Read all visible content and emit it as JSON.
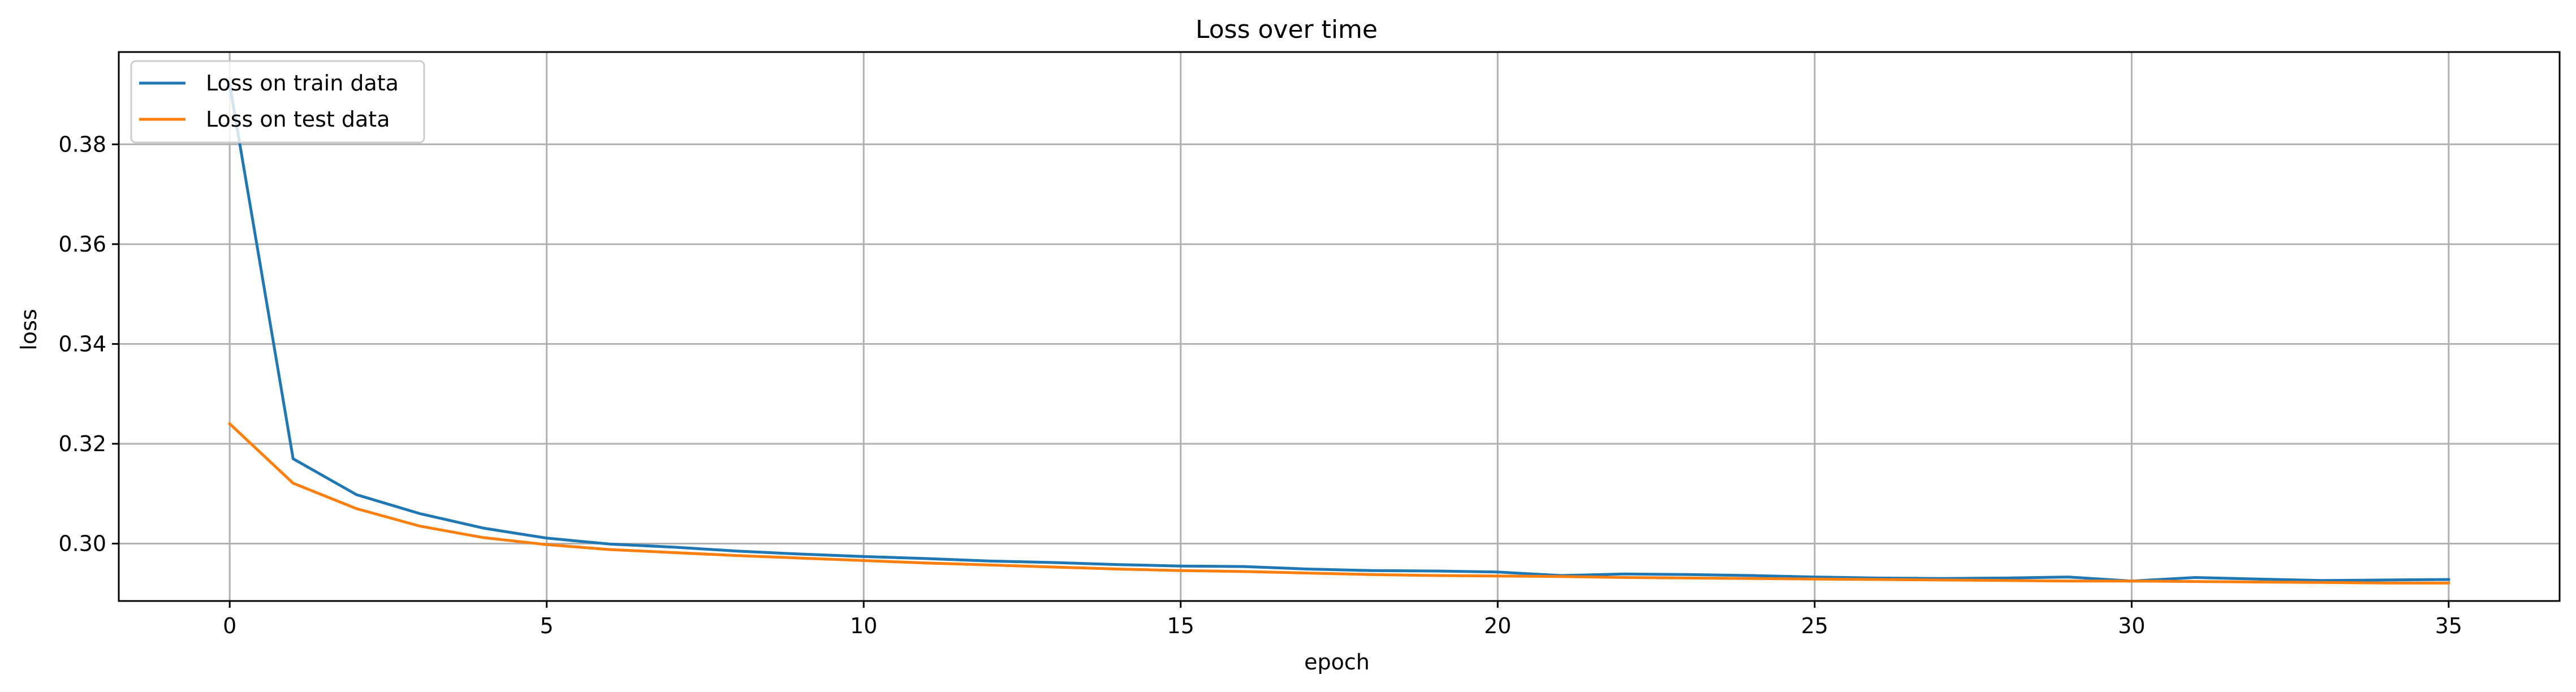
{
  "chart_data": {
    "type": "line",
    "title": "Loss over time",
    "xlabel": "epoch",
    "ylabel": "loss",
    "xlim": [
      -1.75,
      36.75
    ],
    "ylim": [
      0.2885,
      0.3985
    ],
    "xticks": [
      0,
      5,
      10,
      15,
      20,
      25,
      30,
      35
    ],
    "yticks": [
      0.3,
      0.32,
      0.34,
      0.36,
      0.38
    ],
    "ytick_labels": [
      "0.30",
      "0.32",
      "0.34",
      "0.36",
      "0.38"
    ],
    "grid": true,
    "legend_position": "upper-left",
    "x": [
      0,
      1,
      2,
      3,
      4,
      5,
      6,
      7,
      8,
      9,
      10,
      11,
      12,
      13,
      14,
      15,
      16,
      17,
      18,
      19,
      20,
      21,
      22,
      23,
      24,
      25,
      26,
      27,
      28,
      29,
      30,
      31,
      32,
      33,
      34,
      35
    ],
    "series": [
      {
        "name": "Loss on train data",
        "color": "#1f77b4",
        "values": [
          0.392,
          0.317,
          0.3098,
          0.306,
          0.3031,
          0.3011,
          0.2999,
          0.2993,
          0.2985,
          0.2979,
          0.2974,
          0.297,
          0.2965,
          0.2962,
          0.2958,
          0.2955,
          0.2954,
          0.2949,
          0.2946,
          0.2945,
          0.2943,
          0.2936,
          0.2939,
          0.2938,
          0.2936,
          0.2933,
          0.2931,
          0.293,
          0.2931,
          0.2933,
          0.2925,
          0.2932,
          0.2929,
          0.2926,
          0.2927,
          0.2928
        ]
      },
      {
        "name": "Loss on test data",
        "color": "#ff7f0e",
        "values": [
          0.324,
          0.3121,
          0.307,
          0.3035,
          0.3012,
          0.2998,
          0.2988,
          0.2982,
          0.2976,
          0.2971,
          0.2966,
          0.2961,
          0.2957,
          0.2953,
          0.2949,
          0.2946,
          0.2944,
          0.2941,
          0.2938,
          0.2936,
          0.2935,
          0.2934,
          0.2932,
          0.2931,
          0.293,
          0.2929,
          0.2928,
          0.2927,
          0.2926,
          0.2925,
          0.2925,
          0.2924,
          0.2923,
          0.2922,
          0.2921,
          0.2921
        ]
      }
    ]
  }
}
